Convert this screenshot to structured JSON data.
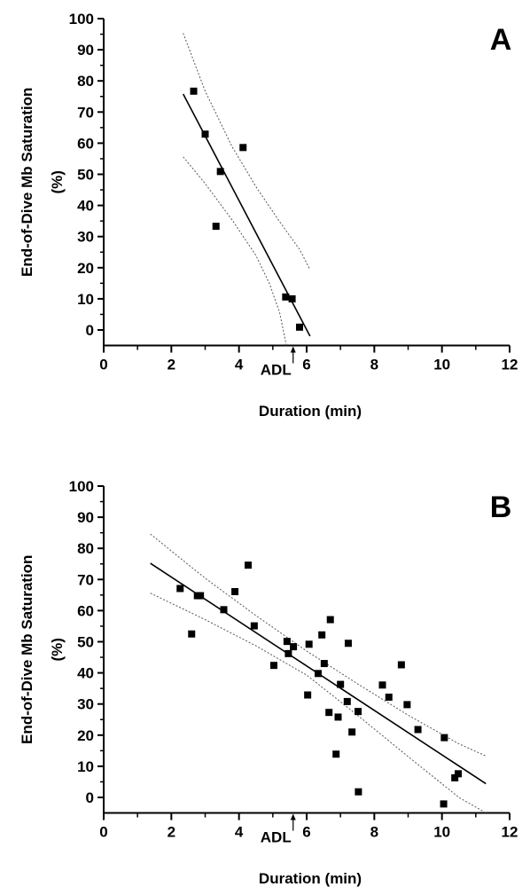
{
  "chart_data": [
    {
      "type": "scatter",
      "panel_label": "A",
      "xlabel": "Duration (min)",
      "ylabel_line1": "End-of-Dive Mb Saturation",
      "ylabel_line2": "(%)",
      "xlim": [
        0,
        12
      ],
      "ylim": [
        -5,
        100
      ],
      "xticks": [
        0,
        2,
        4,
        6,
        8,
        10,
        12
      ],
      "yticks": [
        0,
        10,
        20,
        30,
        40,
        50,
        60,
        70,
        80,
        90,
        100
      ],
      "annotation": {
        "text": "ADL",
        "x": 5.6
      },
      "points": [
        [
          2.66,
          76.7
        ],
        [
          3.0,
          62.9
        ],
        [
          3.45,
          50.9
        ],
        [
          3.32,
          33.3
        ],
        [
          4.12,
          58.6
        ],
        [
          5.38,
          10.6
        ],
        [
          5.57,
          10.0
        ],
        [
          5.79,
          0.9
        ]
      ],
      "fit": {
        "x1": 2.35,
        "y1": 75.8,
        "x2": 6.1,
        "y2": -2.0
      },
      "ci_upper": [
        [
          2.35,
          95.3
        ],
        [
          3.0,
          76.7
        ],
        [
          3.8,
          58.8
        ],
        [
          4.5,
          46.0
        ],
        [
          5.2,
          34.8
        ],
        [
          5.8,
          25.7
        ],
        [
          6.1,
          19.4
        ]
      ],
      "ci_lower": [
        [
          2.35,
          55.6
        ],
        [
          3.0,
          47.0
        ],
        [
          3.8,
          35.3
        ],
        [
          4.5,
          23.9
        ],
        [
          4.9,
          14.9
        ],
        [
          5.2,
          5.6
        ],
        [
          5.4,
          -5.0
        ]
      ]
    },
    {
      "type": "scatter",
      "panel_label": "B",
      "xlabel": "Duration (min)",
      "ylabel_line1": "End-of-Dive Mb Saturation",
      "ylabel_line2": "(%)",
      "xlim": [
        0,
        12
      ],
      "ylim": [
        -5,
        100
      ],
      "xticks": [
        0,
        2,
        4,
        6,
        8,
        10,
        12
      ],
      "yticks": [
        0,
        10,
        20,
        30,
        40,
        50,
        60,
        70,
        80,
        90,
        100
      ],
      "annotation": {
        "text": "ADL",
        "x": 5.6
      },
      "points": [
        [
          2.26,
          67.1
        ],
        [
          2.6,
          52.5
        ],
        [
          2.77,
          64.8
        ],
        [
          2.86,
          64.8
        ],
        [
          3.55,
          60.3
        ],
        [
          3.88,
          66.1
        ],
        [
          4.27,
          74.6
        ],
        [
          4.45,
          55.1
        ],
        [
          5.03,
          42.4
        ],
        [
          5.42,
          50.1
        ],
        [
          5.46,
          46.2
        ],
        [
          5.61,
          48.4
        ],
        [
          6.03,
          32.9
        ],
        [
          6.07,
          49.2
        ],
        [
          6.34,
          39.8
        ],
        [
          6.45,
          52.2
        ],
        [
          6.52,
          43.0
        ],
        [
          6.66,
          27.3
        ],
        [
          6.7,
          57.1
        ],
        [
          6.87,
          13.9
        ],
        [
          6.93,
          25.8
        ],
        [
          7.0,
          36.3
        ],
        [
          7.2,
          30.8
        ],
        [
          7.23,
          49.5
        ],
        [
          7.34,
          21.0
        ],
        [
          7.52,
          27.6
        ],
        [
          7.53,
          1.8
        ],
        [
          8.24,
          36.1
        ],
        [
          8.43,
          32.2
        ],
        [
          8.8,
          42.6
        ],
        [
          8.97,
          29.8
        ],
        [
          9.29,
          21.8
        ],
        [
          10.05,
          -2.1
        ],
        [
          10.07,
          19.2
        ],
        [
          10.38,
          6.3
        ],
        [
          10.48,
          7.6
        ]
      ],
      "fit": {
        "x1": 1.38,
        "y1": 75.2,
        "x2": 11.3,
        "y2": 4.4
      },
      "ci_upper": [
        [
          1.38,
          84.6
        ],
        [
          3.0,
          70.4
        ],
        [
          4.5,
          58.4
        ],
        [
          6.0,
          47.0
        ],
        [
          7.5,
          36.5
        ],
        [
          9.0,
          26.4
        ],
        [
          10.5,
          17.2
        ],
        [
          11.3,
          13.3
        ]
      ],
      "ci_lower": [
        [
          1.38,
          65.6
        ],
        [
          3.0,
          57.1
        ],
        [
          4.5,
          48.7
        ],
        [
          6.0,
          39.3
        ],
        [
          7.5,
          26.4
        ],
        [
          9.0,
          13.1
        ],
        [
          10.5,
          0.0
        ],
        [
          11.3,
          -5.0
        ]
      ]
    }
  ]
}
